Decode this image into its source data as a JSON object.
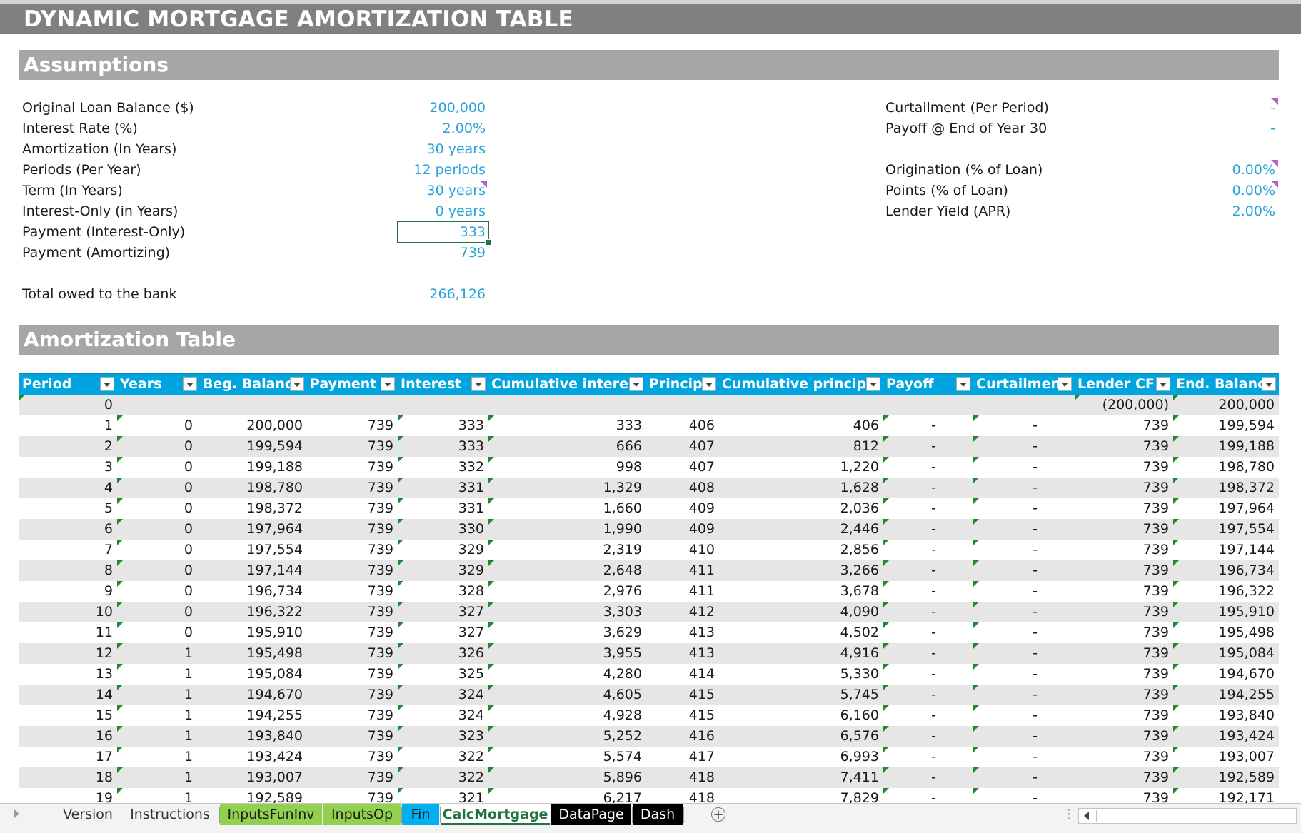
{
  "title": "DYNAMIC MORTGAGE AMORTIZATION TABLE",
  "assumptions": {
    "header": "Assumptions",
    "left": [
      {
        "label": "Original Loan Balance ($)",
        "value": "200,000"
      },
      {
        "label": "Interest Rate (%)",
        "value": "2.00%"
      },
      {
        "label": "Amortization (In Years)",
        "value": "30 years"
      },
      {
        "label": "Periods (Per Year)",
        "value": "12 periods"
      },
      {
        "label": "Term (In Years)",
        "value": "30 years"
      },
      {
        "label": "Interest-Only (in Years)",
        "value": "0 years"
      },
      {
        "label": "Payment (Interest-Only)",
        "value": "333"
      },
      {
        "label": "Payment (Amortizing)",
        "value": "739"
      }
    ],
    "total": {
      "label": "Total owed to the bank",
      "value": "266,126"
    },
    "right": [
      {
        "label": "Curtailment (Per Period)",
        "value": "-"
      },
      {
        "label": "Payoff @ End of Year 30",
        "value": "-"
      },
      {
        "label": "Origination (% of Loan)",
        "value": "0.00%"
      },
      {
        "label": "Points (% of Loan)",
        "value": "0.00%"
      },
      {
        "label": "Lender Yield (APR)",
        "value": "2.00%"
      }
    ]
  },
  "amortization": {
    "header": "Amortization Table",
    "columns": [
      "Period",
      "Years",
      "Beg. Balance",
      "Payment",
      "Interest",
      "Cumulative interest",
      "Principal",
      "Cumulative principal",
      "Payoff",
      "Curtailment",
      "Lender CF",
      "End. Balance"
    ],
    "rows": [
      [
        "0",
        "",
        "",
        "",
        "",
        "",
        "",
        "",
        "",
        "",
        "(200,000)",
        "200,000"
      ],
      [
        "1",
        "0",
        "200,000",
        "739",
        "333",
        "333",
        "406",
        "406",
        "-",
        "-",
        "739",
        "199,594"
      ],
      [
        "2",
        "0",
        "199,594",
        "739",
        "333",
        "666",
        "407",
        "812",
        "-",
        "-",
        "739",
        "199,188"
      ],
      [
        "3",
        "0",
        "199,188",
        "739",
        "332",
        "998",
        "407",
        "1,220",
        "-",
        "-",
        "739",
        "198,780"
      ],
      [
        "4",
        "0",
        "198,780",
        "739",
        "331",
        "1,329",
        "408",
        "1,628",
        "-",
        "-",
        "739",
        "198,372"
      ],
      [
        "5",
        "0",
        "198,372",
        "739",
        "331",
        "1,660",
        "409",
        "2,036",
        "-",
        "-",
        "739",
        "197,964"
      ],
      [
        "6",
        "0",
        "197,964",
        "739",
        "330",
        "1,990",
        "409",
        "2,446",
        "-",
        "-",
        "739",
        "197,554"
      ],
      [
        "7",
        "0",
        "197,554",
        "739",
        "329",
        "2,319",
        "410",
        "2,856",
        "-",
        "-",
        "739",
        "197,144"
      ],
      [
        "8",
        "0",
        "197,144",
        "739",
        "329",
        "2,648",
        "411",
        "3,266",
        "-",
        "-",
        "739",
        "196,734"
      ],
      [
        "9",
        "0",
        "196,734",
        "739",
        "328",
        "2,976",
        "411",
        "3,678",
        "-",
        "-",
        "739",
        "196,322"
      ],
      [
        "10",
        "0",
        "196,322",
        "739",
        "327",
        "3,303",
        "412",
        "4,090",
        "-",
        "-",
        "739",
        "195,910"
      ],
      [
        "11",
        "0",
        "195,910",
        "739",
        "327",
        "3,629",
        "413",
        "4,502",
        "-",
        "-",
        "739",
        "195,498"
      ],
      [
        "12",
        "1",
        "195,498",
        "739",
        "326",
        "3,955",
        "413",
        "4,916",
        "-",
        "-",
        "739",
        "195,084"
      ],
      [
        "13",
        "1",
        "195,084",
        "739",
        "325",
        "4,280",
        "414",
        "5,330",
        "-",
        "-",
        "739",
        "194,670"
      ],
      [
        "14",
        "1",
        "194,670",
        "739",
        "324",
        "4,605",
        "415",
        "5,745",
        "-",
        "-",
        "739",
        "194,255"
      ],
      [
        "15",
        "1",
        "194,255",
        "739",
        "324",
        "4,928",
        "415",
        "6,160",
        "-",
        "-",
        "739",
        "193,840"
      ],
      [
        "16",
        "1",
        "193,840",
        "739",
        "323",
        "5,252",
        "416",
        "6,576",
        "-",
        "-",
        "739",
        "193,424"
      ],
      [
        "17",
        "1",
        "193,424",
        "739",
        "322",
        "5,574",
        "417",
        "6,993",
        "-",
        "-",
        "739",
        "193,007"
      ],
      [
        "18",
        "1",
        "193,007",
        "739",
        "322",
        "5,896",
        "418",
        "7,411",
        "-",
        "-",
        "739",
        "192,589"
      ],
      [
        "19",
        "1",
        "192,589",
        "739",
        "321",
        "6,217",
        "418",
        "7,829",
        "-",
        "-",
        "739",
        "192,171"
      ]
    ]
  },
  "sheet_tabs": [
    {
      "label": "Version",
      "bg": "#f3f3f3",
      "fg": "#333333"
    },
    {
      "label": "Instructions",
      "bg": "#f3f3f3",
      "fg": "#333333"
    },
    {
      "label": "InputsFunInv",
      "bg": "#92d050",
      "fg": "#1a1a1a"
    },
    {
      "label": "InputsOp",
      "bg": "#92d050",
      "fg": "#1a1a1a"
    },
    {
      "label": "Fin",
      "bg": "#00b0f0",
      "fg": "#1a1a1a"
    },
    {
      "label": "CalcMortgage",
      "bg": "#ffffff",
      "fg": "#217346",
      "active": true
    },
    {
      "label": "DataPage",
      "bg": "#000000",
      "fg": "#ffffff"
    },
    {
      "label": "Dash",
      "bg": "#000000",
      "fg": "#ffffff"
    }
  ],
  "colors": {
    "input_blue": "#29a3d8",
    "header_blue": "#00a5e0",
    "title_gray": "#808080",
    "section_gray": "#a6a6a6",
    "row_alt": "#e6e6e6",
    "excel_green": "#217346"
  }
}
